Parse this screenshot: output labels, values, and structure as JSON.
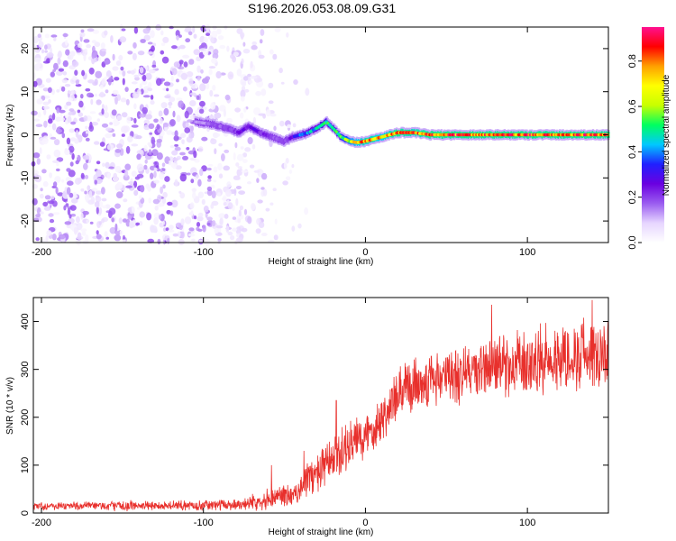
{
  "title": "S196.2026.053.08.09.G31",
  "chart_data": [
    {
      "type": "heatmap",
      "name": "spectrogram",
      "xlabel": "Height of straight line (km)",
      "ylabel": "Frequency (Hz)",
      "xlim": [
        -205,
        150
      ],
      "ylim": [
        -25,
        25
      ],
      "xticks": [
        -200,
        -100,
        0,
        100
      ],
      "yticks": [
        -20,
        -10,
        0,
        10,
        20
      ],
      "colorbar": {
        "label": "Normalized spectral amplitude",
        "range": [
          0,
          0.95
        ],
        "ticks": [
          0.0,
          0.2,
          0.4,
          0.6,
          0.8
        ],
        "colormap": [
          "#ffffff",
          "#e6d5ff",
          "#9a5cf0",
          "#6a00e0",
          "#2020ff",
          "#00c8ff",
          "#00ff60",
          "#c8ff00",
          "#ffff00",
          "#ffa000",
          "#ff0000",
          "#ff1090"
        ]
      },
      "noise_region": {
        "x_range": [
          -205,
          -65
        ],
        "freq_range": [
          -25,
          25
        ],
        "amplitude_range": [
          0.02,
          0.2
        ]
      },
      "signal_ridge": {
        "x": [
          -105,
          -95,
          -85,
          -78,
          -72,
          -65,
          -58,
          -50,
          -45,
          -40,
          -35,
          -28,
          -24,
          -20,
          -15,
          -10,
          -5,
          0,
          5,
          10,
          15,
          20,
          30,
          40,
          60,
          80,
          100,
          120,
          140,
          150
        ],
        "freq": [
          3,
          2.5,
          1.5,
          0.5,
          2,
          0.5,
          -0.5,
          -1.5,
          -0.5,
          0,
          0.5,
          2,
          3,
          1.5,
          -0.5,
          -1.5,
          -1.8,
          -1.5,
          -1,
          -0.5,
          0,
          0.5,
          0.5,
          0,
          0,
          0,
          0,
          0,
          0,
          0
        ],
        "amplitude": [
          0.15,
          0.18,
          0.2,
          0.25,
          0.3,
          0.25,
          0.22,
          0.2,
          0.3,
          0.4,
          0.45,
          0.5,
          0.55,
          0.5,
          0.6,
          0.7,
          0.8,
          0.85,
          0.85,
          0.8,
          0.85,
          0.9,
          0.85,
          0.9,
          0.9,
          0.9,
          0.9,
          0.9,
          0.9,
          0.9
        ]
      }
    },
    {
      "type": "line",
      "name": "snr",
      "xlabel": "Height of straight line (km)",
      "ylabel": "SNR (10 * v/v)",
      "xlim": [
        -205,
        150
      ],
      "ylim": [
        0,
        450
      ],
      "xticks": [
        -200,
        -100,
        0,
        100
      ],
      "yticks": [
        0,
        100,
        200,
        300,
        400
      ],
      "color": "#e8302c",
      "envelope": {
        "x": [
          -205,
          -150,
          -100,
          -80,
          -70,
          -60,
          -50,
          -45,
          -40,
          -35,
          -30,
          -25,
          -20,
          -10,
          0,
          10,
          20,
          30,
          40,
          50,
          60,
          70,
          80,
          90,
          100,
          110,
          120,
          130,
          140,
          150
        ],
        "mean": [
          15,
          15,
          16,
          18,
          22,
          30,
          40,
          30,
          55,
          75,
          80,
          95,
          110,
          140,
          160,
          200,
          240,
          270,
          280,
          285,
          290,
          300,
          305,
          310,
          310,
          320,
          325,
          330,
          335,
          340
        ],
        "spread": [
          10,
          12,
          12,
          14,
          18,
          25,
          30,
          25,
          35,
          45,
          50,
          55,
          60,
          60,
          60,
          60,
          65,
          70,
          70,
          70,
          75,
          75,
          75,
          80,
          80,
          85,
          85,
          90,
          90,
          90
        ]
      },
      "spikes": [
        {
          "x": -58,
          "y": 100
        },
        {
          "x": -38,
          "y": 130
        },
        {
          "x": -18,
          "y": 235
        },
        {
          "x": 78,
          "y": 435
        },
        {
          "x": 140,
          "y": 445
        }
      ]
    }
  ]
}
